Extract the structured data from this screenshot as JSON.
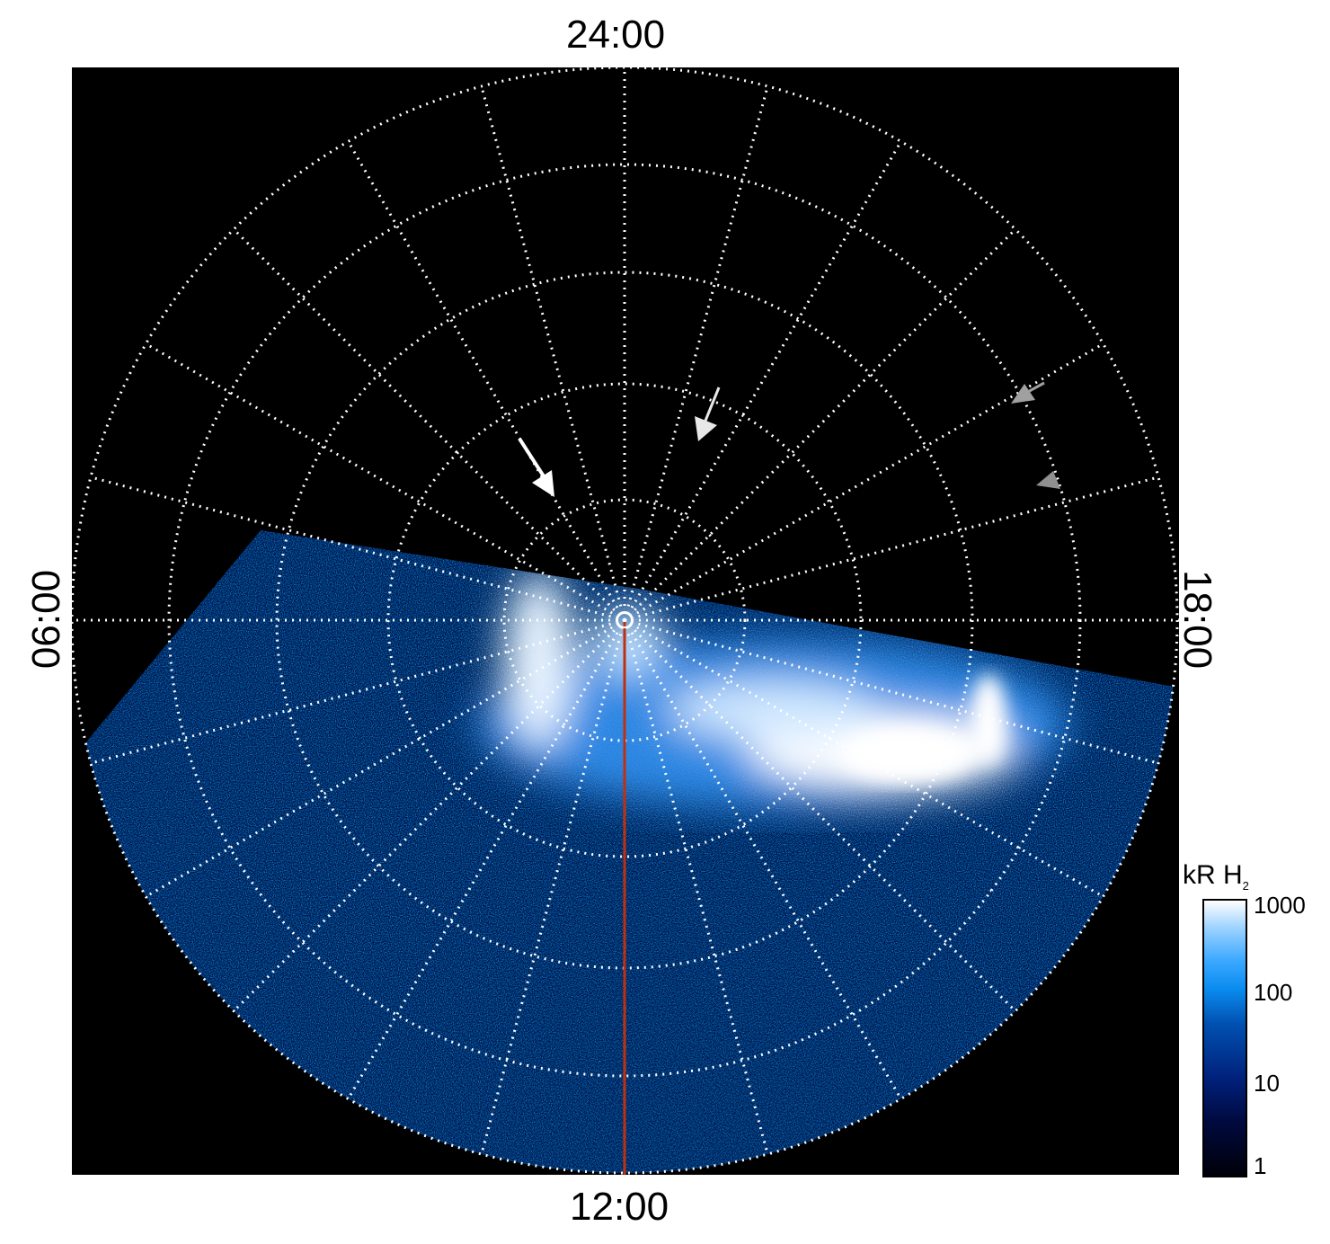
{
  "labels": {
    "top": "24:00",
    "bottom": "12:00",
    "left": "06:00",
    "right": "18:00"
  },
  "colorbar": {
    "title": "kR H",
    "title_subscript": "2",
    "ticks": [
      "1000",
      "100",
      "10",
      "1"
    ],
    "scale": "log",
    "range": [
      1,
      1000
    ],
    "colors": {
      "low": "#000008",
      "mid": "#0a8cf0",
      "high": "#ffffff"
    }
  },
  "colors": {
    "background": "#000000",
    "grid": "#ffffff",
    "meridian_line": "#c03010",
    "arrow_white": "#ffffff",
    "arrow_gray": "#a0a0a0"
  }
}
